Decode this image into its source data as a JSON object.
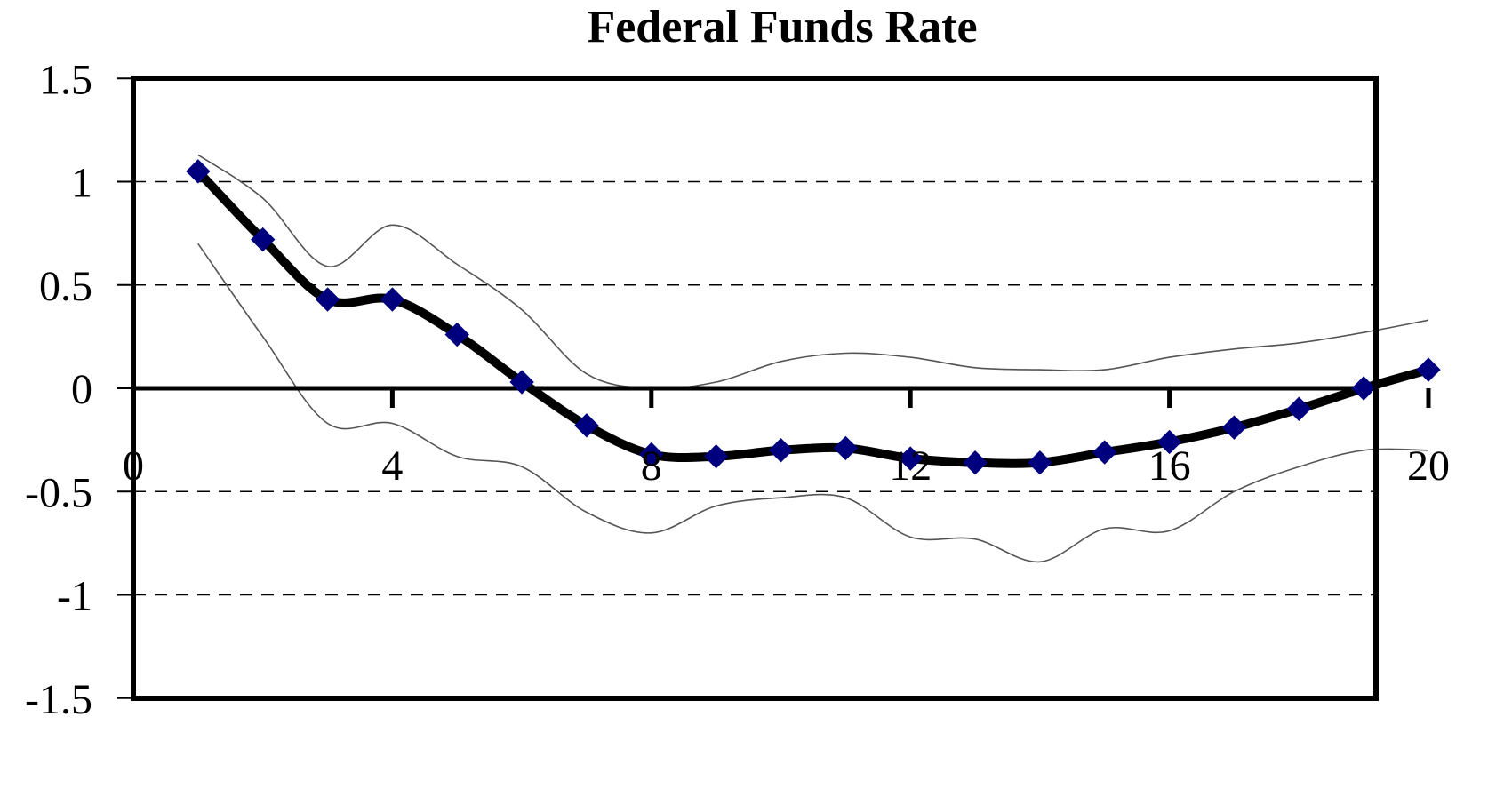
{
  "chart_data": {
    "type": "line",
    "title": "Federal Funds Rate",
    "xlabel": "",
    "ylabel": "",
    "xlim": [
      0,
      21
    ],
    "ylim": [
      -1.5,
      1.5
    ],
    "x_ticks": [
      0,
      4,
      8,
      12,
      16,
      20
    ],
    "y_ticks": [
      1.5,
      1,
      0.5,
      0,
      -0.5,
      -1,
      -1.5
    ],
    "grid": "horizontal dashed",
    "legend": "none",
    "x": [
      1,
      2,
      3,
      4,
      5,
      6,
      7,
      8,
      9,
      10,
      11,
      12,
      13,
      14,
      15,
      16,
      17,
      18,
      19,
      20
    ],
    "series": [
      {
        "role": "estimate",
        "color": "#000000",
        "marker_color": "#00007f",
        "values": [
          1.05,
          0.72,
          0.43,
          0.43,
          0.26,
          0.03,
          -0.18,
          -0.32,
          -0.33,
          -0.3,
          -0.29,
          -0.34,
          -0.36,
          -0.36,
          -0.31,
          -0.26,
          -0.19,
          -0.1,
          0.0,
          0.09
        ]
      },
      {
        "role": "upper-band",
        "color": "#555555",
        "values": [
          1.13,
          0.92,
          0.59,
          0.79,
          0.6,
          0.38,
          0.07,
          0.0,
          0.03,
          0.13,
          0.17,
          0.15,
          0.1,
          0.09,
          0.09,
          0.15,
          0.19,
          0.22,
          0.27,
          0.33
        ]
      },
      {
        "role": "lower-band",
        "color": "#555555",
        "values": [
          0.7,
          0.25,
          -0.17,
          -0.17,
          -0.33,
          -0.38,
          -0.6,
          -0.7,
          -0.57,
          -0.53,
          -0.53,
          -0.72,
          -0.73,
          -0.84,
          -0.68,
          -0.69,
          -0.5,
          -0.38,
          -0.3,
          -0.3
        ]
      }
    ]
  }
}
